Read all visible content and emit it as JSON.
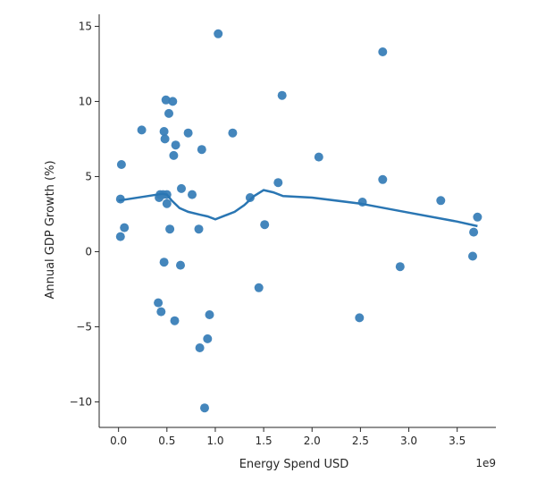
{
  "chart_data": {
    "type": "scatter",
    "xlabel": "Energy Spend USD",
    "ylabel": "Annual GDP Growth (%)",
    "x_offset_label": "1e9",
    "xlim": [
      -0.2,
      3.9
    ],
    "ylim": [
      -11.7,
      15.8
    ],
    "x_ticks": [
      0.0,
      0.5,
      1.0,
      1.5,
      2.0,
      2.5,
      3.0,
      3.5
    ],
    "x_tick_labels": [
      "0.0",
      "0.5",
      "1.0",
      "1.5",
      "2.0",
      "2.5",
      "3.0",
      "3.5"
    ],
    "y_ticks": [
      -10,
      -5,
      0,
      5,
      10,
      15
    ],
    "y_tick_labels": [
      "−10",
      "−5",
      "0",
      "5",
      "10",
      "15"
    ],
    "grid": false,
    "colors": {
      "points": "#3a7fb8",
      "line": "#2a76b3",
      "axis": "#262626"
    },
    "points": [
      [
        0.02,
        3.5
      ],
      [
        0.02,
        1.0
      ],
      [
        0.03,
        5.8
      ],
      [
        0.06,
        1.6
      ],
      [
        0.24,
        8.1
      ],
      [
        0.41,
        -3.4
      ],
      [
        0.42,
        3.6
      ],
      [
        0.43,
        3.8
      ],
      [
        0.44,
        -4.0
      ],
      [
        0.46,
        3.8
      ],
      [
        0.47,
        -0.7
      ],
      [
        0.47,
        8.0
      ],
      [
        0.48,
        7.5
      ],
      [
        0.49,
        10.1
      ],
      [
        0.5,
        3.8
      ],
      [
        0.5,
        3.2
      ],
      [
        0.52,
        9.2
      ],
      [
        0.53,
        1.5
      ],
      [
        0.56,
        10.0
      ],
      [
        0.57,
        6.4
      ],
      [
        0.58,
        -4.6
      ],
      [
        0.59,
        7.1
      ],
      [
        0.64,
        -0.9
      ],
      [
        0.65,
        4.2
      ],
      [
        0.72,
        7.9
      ],
      [
        0.76,
        3.8
      ],
      [
        0.83,
        1.5
      ],
      [
        0.84,
        -6.4
      ],
      [
        0.86,
        6.8
      ],
      [
        0.89,
        -10.4
      ],
      [
        0.92,
        -5.8
      ],
      [
        0.94,
        -4.2
      ],
      [
        1.03,
        14.5
      ],
      [
        1.18,
        7.9
      ],
      [
        1.36,
        3.6
      ],
      [
        1.45,
        -2.4
      ],
      [
        1.51,
        1.8
      ],
      [
        1.65,
        4.6
      ],
      [
        1.69,
        10.4
      ],
      [
        2.07,
        6.3
      ],
      [
        2.49,
        -4.4
      ],
      [
        2.52,
        3.3
      ],
      [
        2.73,
        13.3
      ],
      [
        2.73,
        4.8
      ],
      [
        2.91,
        -1.0
      ],
      [
        3.33,
        3.4
      ],
      [
        3.66,
        -0.3
      ],
      [
        3.67,
        1.3
      ],
      [
        3.71,
        2.3
      ]
    ],
    "trend_line": [
      [
        0.0,
        3.4
      ],
      [
        0.15,
        3.55
      ],
      [
        0.3,
        3.7
      ],
      [
        0.45,
        3.85
      ],
      [
        0.5,
        3.8
      ],
      [
        0.55,
        3.4
      ],
      [
        0.63,
        2.9
      ],
      [
        0.72,
        2.65
      ],
      [
        0.85,
        2.45
      ],
      [
        0.92,
        2.35
      ],
      [
        1.0,
        2.15
      ],
      [
        1.1,
        2.4
      ],
      [
        1.2,
        2.65
      ],
      [
        1.3,
        3.1
      ],
      [
        1.4,
        3.7
      ],
      [
        1.5,
        4.1
      ],
      [
        1.6,
        3.95
      ],
      [
        1.7,
        3.7
      ],
      [
        2.0,
        3.6
      ],
      [
        2.5,
        3.2
      ],
      [
        3.0,
        2.6
      ],
      [
        3.5,
        2.0
      ],
      [
        3.71,
        1.7
      ]
    ]
  }
}
